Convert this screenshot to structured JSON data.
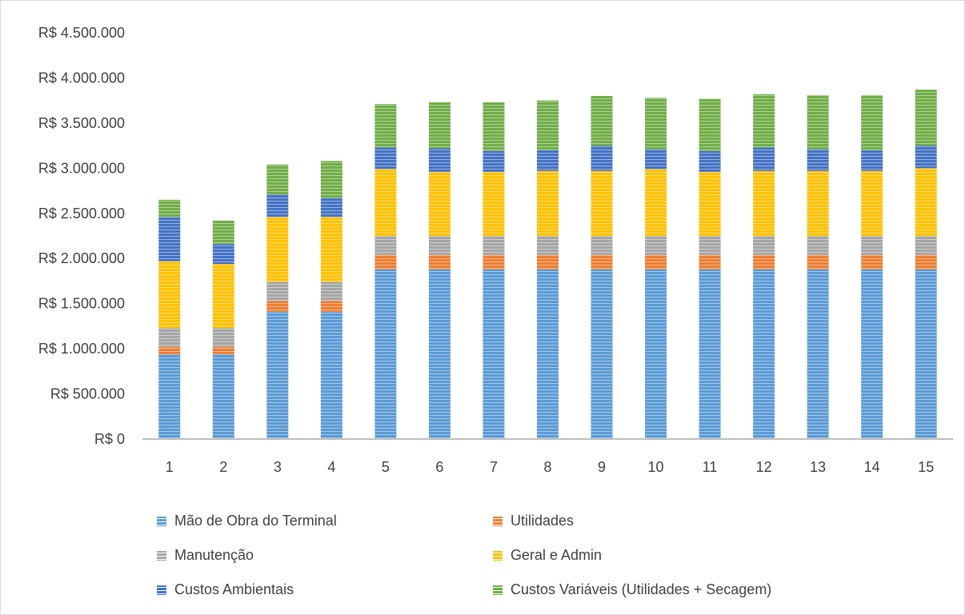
{
  "chart_data": {
    "type": "bar",
    "stacked": true,
    "title": "",
    "xlabel": "",
    "ylabel": "",
    "categories": [
      "1",
      "2",
      "3",
      "4",
      "5",
      "6",
      "7",
      "8",
      "9",
      "10",
      "11",
      "12",
      "13",
      "14",
      "15"
    ],
    "ylim": [
      0,
      4500000
    ],
    "y_ticks": [
      {
        "value": 0,
        "label": "R$ 0"
      },
      {
        "value": 500000,
        "label": "R$ 500.000"
      },
      {
        "value": 1000000,
        "label": "R$ 1.000.000"
      },
      {
        "value": 1500000,
        "label": "R$ 1.500.000"
      },
      {
        "value": 2000000,
        "label": "R$ 2.000.000"
      },
      {
        "value": 2500000,
        "label": "R$ 2.500.000"
      },
      {
        "value": 3000000,
        "label": "R$ 3.000.000"
      },
      {
        "value": 3500000,
        "label": "R$ 3.500.000"
      },
      {
        "value": 4000000,
        "label": "R$ 4.000.000"
      },
      {
        "value": 4500000,
        "label": "R$ 4.500.000"
      }
    ],
    "grid": false,
    "legend_position": "bottom",
    "series": [
      {
        "name": "Mão de Obra do Terminal",
        "color": "#5B9BD5",
        "values": [
          940000,
          940000,
          1410000,
          1410000,
          1880000,
          1880000,
          1880000,
          1880000,
          1880000,
          1880000,
          1880000,
          1880000,
          1880000,
          1880000,
          1880000
        ]
      },
      {
        "name": "Utilidades",
        "color": "#ED7D31",
        "values": [
          80000,
          80000,
          120000,
          120000,
          160000,
          160000,
          160000,
          160000,
          160000,
          160000,
          160000,
          160000,
          160000,
          160000,
          160000
        ]
      },
      {
        "name": "Manutenção",
        "color": "#A5A5A5",
        "values": [
          210000,
          210000,
          210000,
          210000,
          210000,
          210000,
          210000,
          210000,
          210000,
          210000,
          210000,
          210000,
          210000,
          210000,
          210000
        ]
      },
      {
        "name": "Geral e Admin",
        "color": "#FFC000",
        "values": [
          740000,
          710000,
          720000,
          720000,
          740000,
          710000,
          710000,
          720000,
          720000,
          740000,
          710000,
          720000,
          720000,
          720000,
          750000
        ]
      },
      {
        "name": "Custos Ambientais",
        "color": "#4472C4",
        "values": [
          490000,
          220000,
          250000,
          210000,
          240000,
          260000,
          230000,
          230000,
          280000,
          220000,
          230000,
          260000,
          240000,
          230000,
          250000
        ]
      },
      {
        "name": "Custos Variáveis (Utilidades + Secagem)",
        "color": "#70AD47",
        "values": [
          190000,
          260000,
          330000,
          410000,
          480000,
          510000,
          540000,
          550000,
          550000,
          570000,
          580000,
          590000,
          600000,
          610000,
          620000
        ]
      }
    ]
  }
}
